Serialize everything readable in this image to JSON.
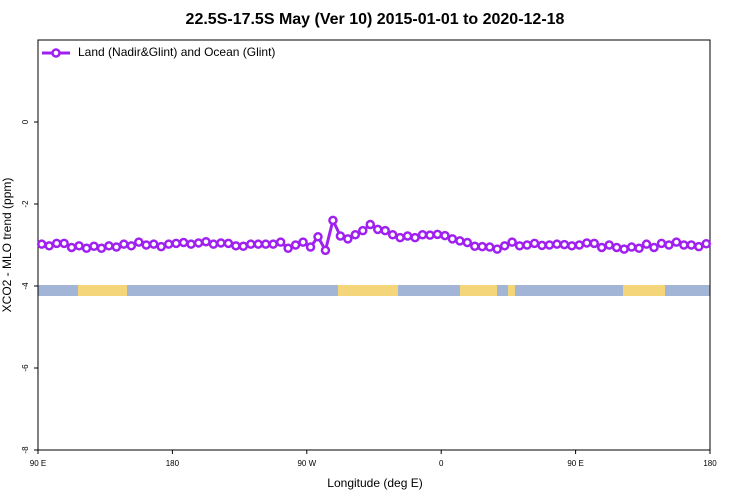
{
  "chart_data": {
    "type": "line",
    "title": "22.5S-17.5S May (Ver 10)   2015-01-01 to 2020-12-18",
    "xlabel": "Longitude (deg E)",
    "ylabel": "XCO2 - MLO trend (ppm)",
    "xlim": [
      90,
      540
    ],
    "ylim": [
      -8,
      2
    ],
    "xticks": [
      {
        "value": 90,
        "label": "90 E"
      },
      {
        "value": 180,
        "label": "180"
      },
      {
        "value": 270,
        "label": "90 W"
      },
      {
        "value": 360,
        "label": "0"
      },
      {
        "value": 450,
        "label": "90 E"
      },
      {
        "value": 540,
        "label": "180"
      }
    ],
    "yticks": [
      -8,
      -6,
      -4,
      -2,
      0
    ],
    "legend": "top-left",
    "x": [
      92.5,
      97.5,
      102.5,
      107.5,
      112.5,
      117.5,
      122.5,
      127.5,
      132.5,
      137.5,
      142.5,
      147.5,
      152.5,
      157.5,
      162.5,
      167.5,
      172.5,
      177.5,
      182.5,
      187.5,
      192.5,
      197.5,
      202.5,
      207.5,
      212.5,
      217.5,
      222.5,
      227.5,
      232.5,
      237.5,
      242.5,
      247.5,
      252.5,
      257.5,
      262.5,
      267.5,
      272.5,
      277.5,
      282.5,
      287.5,
      292.5,
      297.5,
      302.5,
      307.5,
      312.5,
      317.5,
      322.5,
      327.5,
      332.5,
      337.5,
      342.5,
      347.5,
      352.5,
      357.5,
      362.5,
      367.5,
      372.5,
      377.5,
      382.5,
      387.5,
      392.5,
      397.5,
      402.5,
      407.5,
      412.5,
      417.5,
      422.5,
      427.5,
      432.5,
      437.5,
      442.5,
      447.5,
      452.5,
      457.5,
      462.5,
      467.5,
      472.5,
      477.5,
      482.5,
      487.5,
      492.5,
      497.5,
      502.5,
      507.5,
      512.5,
      517.5,
      522.5,
      527.5,
      532.5,
      537.5
    ],
    "series": [
      {
        "name": "Land (Nadir&Glint) and Ocean (Glint)",
        "color": "#a020f0",
        "values": [
          -2.98,
          -3.02,
          -2.96,
          -2.96,
          -3.06,
          -3.02,
          -3.08,
          -3.03,
          -3.08,
          -3.02,
          -3.05,
          -2.98,
          -3.02,
          -2.93,
          -3.0,
          -2.98,
          -3.04,
          -2.98,
          -2.96,
          -2.94,
          -2.98,
          -2.95,
          -2.92,
          -2.98,
          -2.95,
          -2.96,
          -3.02,
          -3.03,
          -2.98,
          -2.98,
          -2.98,
          -2.98,
          -2.93,
          -3.08,
          -3.0,
          -2.93,
          -3.05,
          -2.8,
          -3.13,
          -2.4,
          -2.78,
          -2.85,
          -2.75,
          -2.65,
          -2.5,
          -2.62,
          -2.65,
          -2.75,
          -2.82,
          -2.78,
          -2.82,
          -2.75,
          -2.76,
          -2.74,
          -2.77,
          -2.85,
          -2.9,
          -2.94,
          -3.03,
          -3.04,
          -3.05,
          -3.1,
          -3.02,
          -2.93,
          -3.02,
          -3.0,
          -2.96,
          -3.01,
          -3.0,
          -2.98,
          -2.99,
          -3.02,
          -3.0,
          -2.95,
          -2.96,
          -3.06,
          -3.0,
          -3.06,
          -3.1,
          -3.05,
          -3.08,
          -2.98,
          -3.06,
          -2.96,
          -3.0,
          -2.93,
          -3.0,
          -3.0,
          -3.04,
          -2.97
        ]
      }
    ]
  }
}
